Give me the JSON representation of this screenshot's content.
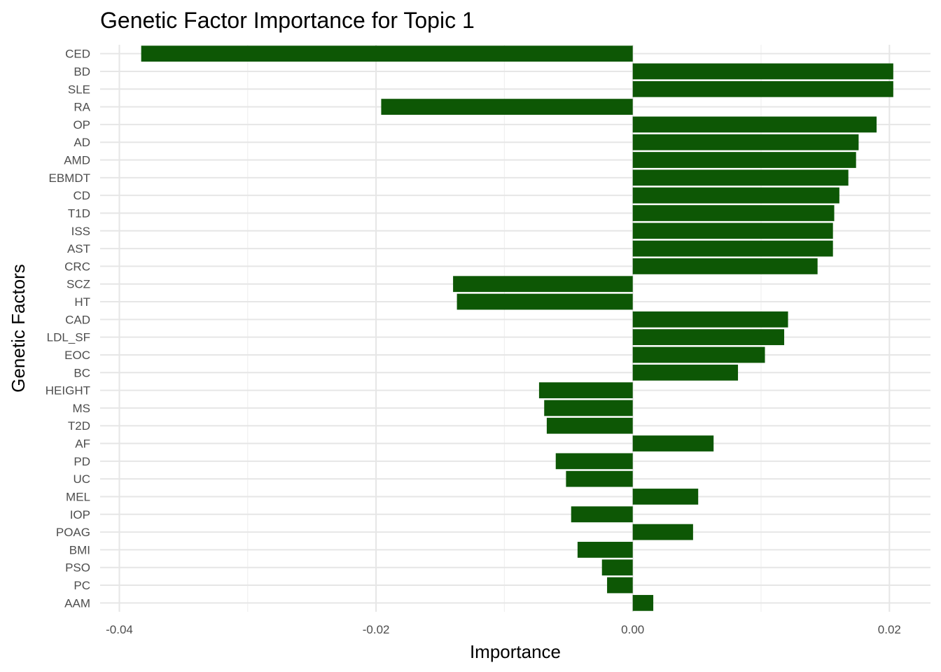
{
  "chart_data": {
    "type": "bar",
    "orientation": "horizontal",
    "title": "Genetic Factor Importance for Topic 1",
    "xlabel": "Importance",
    "ylabel": "Genetic Factors",
    "xlim": [
      -0.0415,
      0.0232
    ],
    "x_ticks": [
      -0.04,
      -0.02,
      0.0,
      0.02
    ],
    "x_tick_labels": [
      "-0.04",
      "-0.02",
      "0.00",
      "0.02"
    ],
    "grid": true,
    "bar_color": "#0d5705",
    "categories": [
      "CED",
      "BD",
      "SLE",
      "RA",
      "OP",
      "AD",
      "AMD",
      "EBMDT",
      "CD",
      "T1D",
      "ISS",
      "AST",
      "CRC",
      "SCZ",
      "HT",
      "CAD",
      "LDL_SF",
      "EOC",
      "BC",
      "HEIGHT",
      "MS",
      "T2D",
      "AF",
      "PD",
      "UC",
      "MEL",
      "IOP",
      "POAG",
      "BMI",
      "PSO",
      "PC",
      "AAM"
    ],
    "values": [
      -0.0383,
      0.0203,
      0.0203,
      -0.0196,
      0.019,
      0.0176,
      0.0174,
      0.0168,
      0.0161,
      0.0157,
      0.0156,
      0.0156,
      0.0144,
      -0.014,
      -0.0137,
      0.0121,
      0.0118,
      0.0103,
      0.0082,
      -0.0073,
      -0.0069,
      -0.0067,
      0.0063,
      -0.006,
      -0.0052,
      0.0051,
      -0.0048,
      0.0047,
      -0.0043,
      -0.0024,
      -0.002,
      0.0016
    ]
  }
}
